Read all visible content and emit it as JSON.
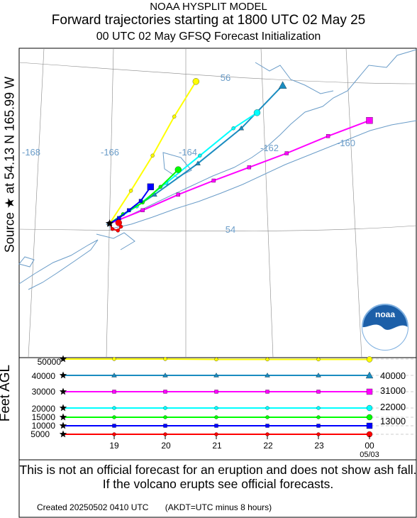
{
  "header": {
    "model": "NOAA HYSPLIT MODEL",
    "title": "Forward trajectories starting at 1800 UTC 02 May 25",
    "subtitle": "00 UTC 02 May    GFSQ  Forecast Initialization"
  },
  "source_label": "Source ★ at   54.13 N  165.99 W",
  "logo_text": "noaa",
  "colors": {
    "yellow": "#ffff00",
    "blue_40k": "#1a8cc0",
    "magenta": "#ff00ff",
    "cyan": "#00ffff",
    "green": "#00ff00",
    "blue": "#0000ff",
    "red": "#ff0000",
    "map_lines": "#6a9cc8",
    "grid_labels": "#6a9cc8"
  },
  "map": {
    "lon_labels": [
      "-168",
      "-166",
      "-164",
      "-162",
      "-160"
    ],
    "lat_labels": [
      "56",
      "54"
    ]
  },
  "chart_data": [
    {
      "type": "line",
      "title": "Forward trajectories starting at 1800 UTC 02 May 25",
      "subtitle": "00 UTC 02 May    GFSQ  Forecast Initialization",
      "source": {
        "lat": 54.13,
        "lon": -165.99
      },
      "series": [
        {
          "height_ft": 50000,
          "color": "yellow",
          "marker": "circle",
          "points": [
            [
              -165.99,
              54.13
            ],
            [
              -165.45,
              54.55
            ],
            [
              -164.9,
              55.0
            ],
            [
              -164.35,
              55.5
            ],
            [
              -163.8,
              55.95
            ]
          ]
        },
        {
          "height_ft": 40000,
          "color": "blue_40k",
          "marker": "triangle",
          "points": [
            [
              -165.99,
              54.13
            ],
            [
              -164.85,
              54.5
            ],
            [
              -163.75,
              54.9
            ],
            [
              -162.65,
              55.35
            ],
            [
              -161.6,
              55.9
            ]
          ]
        },
        {
          "height_ft": 30000,
          "color": "magenta",
          "marker": "square",
          "points": [
            [
              -165.99,
              54.13
            ],
            [
              -165.15,
              54.3
            ],
            [
              -164.25,
              54.5
            ],
            [
              -163.35,
              54.68
            ],
            [
              -162.45,
              54.85
            ],
            [
              -161.5,
              55.03
            ],
            [
              -160.45,
              55.25
            ],
            [
              -159.4,
              55.45
            ]
          ]
        },
        {
          "height_ft": 20000,
          "color": "cyan",
          "marker": "circle",
          "points": [
            [
              -165.99,
              54.13
            ],
            [
              -165.3,
              54.35
            ],
            [
              -164.55,
              54.65
            ],
            [
              -163.7,
              55.0
            ],
            [
              -162.85,
              55.35
            ],
            [
              -162.25,
              55.55
            ]
          ]
        },
        {
          "height_ft": 15000,
          "color": "green",
          "marker": "circle",
          "points": [
            [
              -165.99,
              54.13
            ],
            [
              -165.65,
              54.25
            ],
            [
              -165.15,
              54.4
            ],
            [
              -164.7,
              54.6
            ],
            [
              -164.25,
              54.82
            ]
          ]
        },
        {
          "height_ft": 10000,
          "color": "blue",
          "marker": "square",
          "points": [
            [
              -165.99,
              54.13
            ],
            [
              -165.75,
              54.2
            ],
            [
              -165.5,
              54.3
            ],
            [
              -165.2,
              54.42
            ],
            [
              -164.95,
              54.6
            ]
          ]
        },
        {
          "height_ft": 5000,
          "color": "red",
          "marker": "circle",
          "points": [
            [
              -165.99,
              54.13
            ],
            [
              -165.92,
              54.06
            ],
            [
              -165.78,
              54.04
            ],
            [
              -165.7,
              54.09
            ],
            [
              -165.76,
              54.14
            ]
          ]
        }
      ]
    },
    {
      "type": "line",
      "ylabel": "Feet AGL",
      "x": [
        18,
        19,
        20,
        21,
        22,
        23,
        24
      ],
      "xlim": [
        18,
        24
      ],
      "ylim": [
        4000,
        52000
      ],
      "x_tick_labels": [
        "19",
        "20",
        "21",
        "22",
        "23",
        "00"
      ],
      "x_date_label": "05/03",
      "left_tick_labels": [
        "50000",
        "40000",
        "30000",
        "20000",
        "15000",
        "10000",
        "5000"
      ],
      "left_tick_values": [
        50000,
        40000,
        30000,
        20000,
        15000,
        10000,
        5000
      ],
      "right_labels": [
        "40000",
        "31000",
        "22000",
        "13000"
      ],
      "right_label_values": [
        40000,
        31000,
        22000,
        13000
      ],
      "series": [
        {
          "color": "yellow",
          "marker": "circle",
          "values": [
            50000,
            50000,
            50000,
            49800,
            49800,
            49800,
            49800
          ]
        },
        {
          "color": "blue_40k",
          "marker": "triangle",
          "values": [
            40000,
            40000,
            40000,
            40000,
            40000,
            40000,
            40000
          ]
        },
        {
          "color": "magenta",
          "marker": "square",
          "values": [
            30000,
            30000,
            30000,
            30000,
            30000,
            30000,
            30000
          ]
        },
        {
          "color": "cyan",
          "marker": "circle",
          "values": [
            20000,
            20000,
            20000,
            20000,
            20000,
            20000,
            20000
          ]
        },
        {
          "color": "green",
          "marker": "circle",
          "values": [
            15000,
            15000,
            15000,
            15000,
            15000,
            15000,
            15000
          ]
        },
        {
          "color": "blue",
          "marker": "square",
          "values": [
            10000,
            10000,
            10000,
            10000,
            10000,
            10000,
            10000
          ]
        },
        {
          "color": "red",
          "marker": "circle",
          "values": [
            5000,
            5000,
            5000,
            5000,
            5000,
            5000,
            5000
          ]
        }
      ]
    }
  ],
  "disclaimer": "This is not an official forecast for an eruption and does not show ash fall. If the volcano erupts see official forecasts.",
  "footer": "Created 20250502 0410 UTC       (AKDT=UTC minus 8 hours)"
}
